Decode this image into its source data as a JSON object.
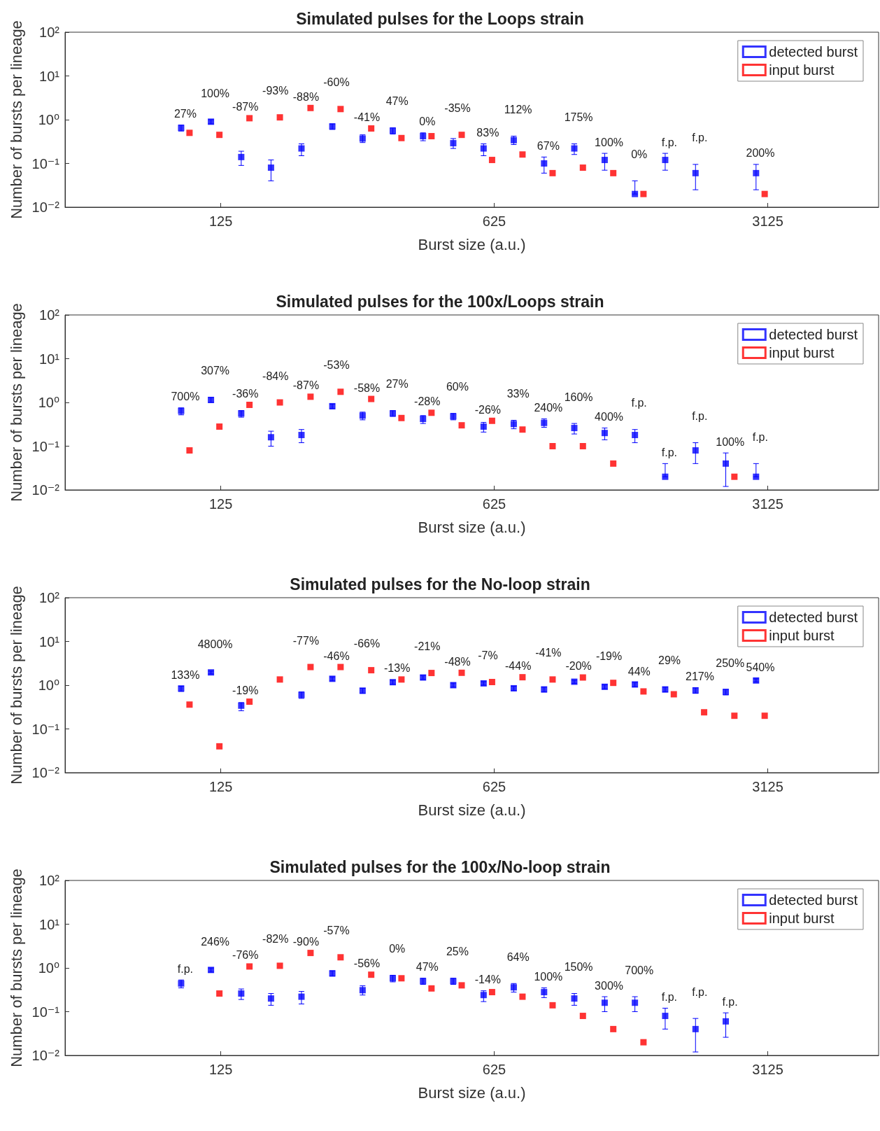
{
  "chart_data": [
    {
      "type": "scatter",
      "title": "Simulated pulses for the Loops strain",
      "xlabel": "Burst size (a.u.)",
      "ylabel": "Number of bursts per lineage",
      "log": "xy",
      "xlim": [
        50,
        6000
      ],
      "xticks": [
        125,
        625,
        3125
      ],
      "ylim": [
        0.01,
        100
      ],
      "yticks": [
        {
          "value": 0.01,
          "label": "10⁻²"
        },
        {
          "value": 0.1,
          "label": "10⁻¹"
        },
        {
          "value": 1,
          "label": "10⁰"
        },
        {
          "value": 10,
          "label": "10¹"
        },
        {
          "value": 100,
          "label": "10²"
        }
      ],
      "legend": "top right",
      "marker": "square",
      "series": [
        {
          "name": "detected burst",
          "color": "#0000ff",
          "x": [
            99,
            118,
            141,
            168,
            201,
            241,
            288,
            344,
            411,
            491,
            587,
            701,
            838,
            1001,
            1197,
            1430,
            1709,
            2043,
            null,
            2917
          ],
          "values": [
            0.65,
            0.9,
            0.14,
            0.08,
            0.22,
            0.7,
            0.37,
            0.56,
            0.42,
            0.29,
            0.22,
            0.34,
            0.1,
            0.22,
            0.12,
            0.02,
            0.12,
            0.06,
            null,
            0.06
          ],
          "errors": [
            [
              0.55,
              0.75
            ],
            [
              0.8,
              1.0
            ],
            [
              0.09,
              0.19
            ],
            [
              0.04,
              0.12
            ],
            [
              0.15,
              0.28
            ],
            [
              0.6,
              0.8
            ],
            [
              0.3,
              0.45
            ],
            [
              0.47,
              0.65
            ],
            [
              0.33,
              0.5
            ],
            [
              0.22,
              0.37
            ],
            [
              0.15,
              0.28
            ],
            [
              0.27,
              0.42
            ],
            [
              0.06,
              0.14
            ],
            [
              0.16,
              0.28
            ],
            [
              0.07,
              0.17
            ],
            [
              0.02,
              0.04
            ],
            [
              0.07,
              0.17
            ],
            [
              0.025,
              0.095
            ],
            null,
            [
              0.025,
              0.095
            ]
          ]
        },
        {
          "name": "input burst",
          "color": "#ff0000",
          "x": [
            104,
            124,
            148,
            177,
            212,
            253,
            303,
            362,
            432,
            516,
            617,
            738,
            881,
            1053,
            1259,
            1504,
            null,
            null,
            null,
            3069
          ],
          "values": [
            0.5,
            0.45,
            1.08,
            1.13,
            1.85,
            1.75,
            0.63,
            0.38,
            0.42,
            0.45,
            0.12,
            0.16,
            0.06,
            0.08,
            0.06,
            0.02,
            null,
            null,
            null,
            0.02
          ]
        }
      ],
      "annotations": [
        "27%",
        "100%",
        "-87%",
        "-93%",
        "-88%",
        "-60%",
        "-41%",
        "47%",
        "0%",
        "-35%",
        "83%",
        "112%",
        "67%",
        "175%",
        "100%",
        "0%",
        "f.p.",
        "f.p.",
        "200%"
      ]
    },
    {
      "type": "scatter",
      "title": "Simulated pulses for the 100x/Loops strain",
      "xlabel": "Burst size (a.u.)",
      "ylabel": "Number of bursts per lineage",
      "log": "xy",
      "xlim": [
        50,
        6000
      ],
      "xticks": [
        125,
        625,
        3125
      ],
      "ylim": [
        0.01,
        100
      ],
      "yticks": [
        {
          "value": 0.01,
          "label": "10⁻²"
        },
        {
          "value": 0.1,
          "label": "10⁻¹"
        },
        {
          "value": 1,
          "label": "10⁰"
        },
        {
          "value": 10,
          "label": "10¹"
        },
        {
          "value": 100,
          "label": "10²"
        }
      ],
      "legend": "top right",
      "marker": "square",
      "series": [
        {
          "name": "detected burst",
          "color": "#0000ff",
          "x": [
            99,
            118,
            141,
            168,
            201,
            241,
            288,
            344,
            411,
            491,
            587,
            701,
            838,
            1001,
            1197,
            1430,
            1709,
            2043,
            2441,
            2917
          ],
          "values": [
            0.64,
            1.14,
            0.56,
            0.16,
            0.18,
            0.82,
            0.5,
            0.56,
            0.42,
            0.48,
            0.28,
            0.32,
            0.34,
            0.26,
            0.2,
            0.18,
            0.02,
            0.08,
            0.04,
            0.02
          ],
          "errors": [
            [
              0.52,
              0.75
            ],
            [
              1.0,
              1.3
            ],
            [
              0.46,
              0.65
            ],
            [
              0.1,
              0.22
            ],
            [
              0.12,
              0.24
            ],
            [
              0.72,
              0.92
            ],
            [
              0.4,
              0.6
            ],
            [
              0.48,
              0.65
            ],
            [
              0.33,
              0.5
            ],
            [
              0.4,
              0.56
            ],
            [
              0.21,
              0.35
            ],
            [
              0.25,
              0.39
            ],
            [
              0.27,
              0.42
            ],
            [
              0.19,
              0.33
            ],
            [
              0.14,
              0.26
            ],
            [
              0.12,
              0.24
            ],
            [
              0.02,
              0.04
            ],
            [
              0.04,
              0.12
            ],
            [
              0.012,
              0.07
            ],
            [
              0.02,
              0.04
            ]
          ]
        },
        {
          "name": "input burst",
          "color": "#ff0000",
          "x": [
            104,
            124,
            148,
            177,
            212,
            253,
            303,
            362,
            432,
            516,
            617,
            738,
            881,
            1053,
            1259,
            null,
            null,
            null,
            2568,
            null
          ],
          "values": [
            0.08,
            0.28,
            0.88,
            1.0,
            1.35,
            1.75,
            1.2,
            0.44,
            0.58,
            0.3,
            0.38,
            0.24,
            0.1,
            0.1,
            0.04,
            null,
            null,
            null,
            0.02,
            null
          ]
        }
      ],
      "annotations": [
        "700%",
        "307%",
        "-36%",
        "-84%",
        "-87%",
        "-53%",
        "-58%",
        "27%",
        "-28%",
        "60%",
        "-26%",
        "33%",
        "240%",
        "160%",
        "400%",
        "f.p.",
        "f.p.",
        "f.p.",
        "100%",
        "f.p."
      ]
    },
    {
      "type": "scatter",
      "title": "Simulated pulses for the No-loop strain",
      "xlabel": "Burst size (a.u.)",
      "ylabel": "Number of bursts per lineage",
      "log": "xy",
      "xlim": [
        50,
        6000
      ],
      "xticks": [
        125,
        625,
        3125
      ],
      "ylim": [
        0.01,
        100
      ],
      "yticks": [
        {
          "value": 0.01,
          "label": "10⁻²"
        },
        {
          "value": 0.1,
          "label": "10⁻¹"
        },
        {
          "value": 1,
          "label": "10⁰"
        },
        {
          "value": 10,
          "label": "10¹"
        },
        {
          "value": 100,
          "label": "10²"
        }
      ],
      "legend": "top right",
      "marker": "square",
      "series": [
        {
          "name": "detected burst",
          "color": "#0000ff",
          "x": [
            99,
            118,
            141,
            null,
            201,
            241,
            288,
            344,
            411,
            491,
            587,
            701,
            838,
            1001,
            1197,
            1430,
            1709,
            2043,
            2441,
            2917
          ],
          "values": [
            0.84,
            1.96,
            0.34,
            null,
            0.6,
            1.4,
            0.75,
            1.17,
            1.5,
            1.0,
            1.1,
            0.85,
            0.8,
            1.2,
            0.92,
            1.04,
            0.8,
            0.76,
            0.7,
            1.28
          ],
          "errors": [
            [
              0.72,
              0.95
            ],
            [
              1.8,
              2.1
            ],
            [
              0.26,
              0.4
            ],
            null,
            [
              0.5,
              0.7
            ],
            [
              1.25,
              1.55
            ],
            [
              0.65,
              0.85
            ],
            [
              1.05,
              1.3
            ],
            [
              1.35,
              1.65
            ],
            [
              0.9,
              1.12
            ],
            [
              1.0,
              1.2
            ],
            [
              0.75,
              0.95
            ],
            [
              0.7,
              0.9
            ],
            [
              1.1,
              1.3
            ],
            [
              0.82,
              1.02
            ],
            [
              0.92,
              1.15
            ],
            [
              0.7,
              0.9
            ],
            [
              0.65,
              0.87
            ],
            [
              0.6,
              0.8
            ],
            [
              1.18,
              1.4
            ]
          ]
        },
        {
          "name": "input burst",
          "color": "#ff0000",
          "x": [
            104,
            124,
            148,
            177,
            212,
            253,
            303,
            362,
            432,
            516,
            617,
            738,
            881,
            1053,
            1259,
            1504,
            1798,
            2149,
            2568,
            3069
          ],
          "values": [
            0.36,
            0.04,
            0.42,
            1.35,
            2.6,
            2.6,
            2.2,
            1.35,
            1.9,
            1.92,
            1.18,
            1.52,
            1.35,
            1.5,
            1.13,
            0.72,
            0.62,
            0.24,
            0.2,
            0.2
          ]
        }
      ],
      "annotations": [
        "133%",
        "4800%",
        "-19%",
        "-77%",
        "-46%",
        "-66%",
        "-13%",
        "-21%",
        "-48%",
        "-7%",
        "-44%",
        "-41%",
        "-20%",
        "-19%",
        "44%",
        "29%",
        "217%",
        "250%",
        "540%"
      ]
    },
    {
      "type": "scatter",
      "title": "Simulated pulses for the 100x/No-loop strain",
      "xlabel": "Burst size (a.u.)",
      "ylabel": "Number of bursts per lineage",
      "log": "xy",
      "xlim": [
        50,
        6000
      ],
      "xticks": [
        125,
        625,
        3125
      ],
      "ylim": [
        0.01,
        100
      ],
      "yticks": [
        {
          "value": 0.01,
          "label": "10⁻²"
        },
        {
          "value": 0.1,
          "label": "10⁻¹"
        },
        {
          "value": 1,
          "label": "10⁰"
        },
        {
          "value": 10,
          "label": "10¹"
        },
        {
          "value": 100,
          "label": "10²"
        }
      ],
      "legend": "top right",
      "marker": "square",
      "series": [
        {
          "name": "detected burst",
          "color": "#0000ff",
          "x": [
            99,
            118,
            141,
            168,
            201,
            241,
            288,
            344,
            411,
            491,
            587,
            701,
            838,
            1001,
            1197,
            1430,
            1709,
            2043,
            2441,
            null
          ],
          "values": [
            0.44,
            0.9,
            0.26,
            0.2,
            0.22,
            0.75,
            0.31,
            0.58,
            0.5,
            0.5,
            0.24,
            0.36,
            0.28,
            0.2,
            0.16,
            0.16,
            0.08,
            0.04,
            0.06,
            null
          ],
          "errors": [
            [
              0.35,
              0.53
            ],
            [
              0.8,
              1.0
            ],
            [
              0.19,
              0.33
            ],
            [
              0.14,
              0.26
            ],
            [
              0.15,
              0.29
            ],
            [
              0.65,
              0.86
            ],
            [
              0.24,
              0.39
            ],
            [
              0.48,
              0.68
            ],
            [
              0.42,
              0.58
            ],
            [
              0.42,
              0.58
            ],
            [
              0.17,
              0.3
            ],
            [
              0.28,
              0.44
            ],
            [
              0.21,
              0.35
            ],
            [
              0.14,
              0.26
            ],
            [
              0.1,
              0.22
            ],
            [
              0.1,
              0.22
            ],
            [
              0.04,
              0.12
            ],
            [
              0.012,
              0.07
            ],
            [
              0.026,
              0.094
            ],
            null
          ]
        },
        {
          "name": "input burst",
          "color": "#ff0000",
          "x": [
            null,
            124,
            148,
            177,
            212,
            253,
            303,
            362,
            432,
            516,
            617,
            738,
            881,
            1053,
            1259,
            1504,
            null,
            null,
            null,
            null
          ],
          "values": [
            null,
            0.26,
            1.08,
            1.12,
            2.2,
            1.75,
            0.7,
            0.58,
            0.34,
            0.4,
            0.28,
            0.22,
            0.14,
            0.08,
            0.04,
            0.02,
            null,
            null,
            null,
            null
          ]
        }
      ],
      "annotations": [
        "f.p.",
        "246%",
        "-76%",
        "-82%",
        "-90%",
        "-57%",
        "-56%",
        "0%",
        "47%",
        "25%",
        "-14%",
        "64%",
        "100%",
        "150%",
        "300%",
        "700%",
        "f.p.",
        "f.p.",
        "f.p."
      ]
    }
  ]
}
